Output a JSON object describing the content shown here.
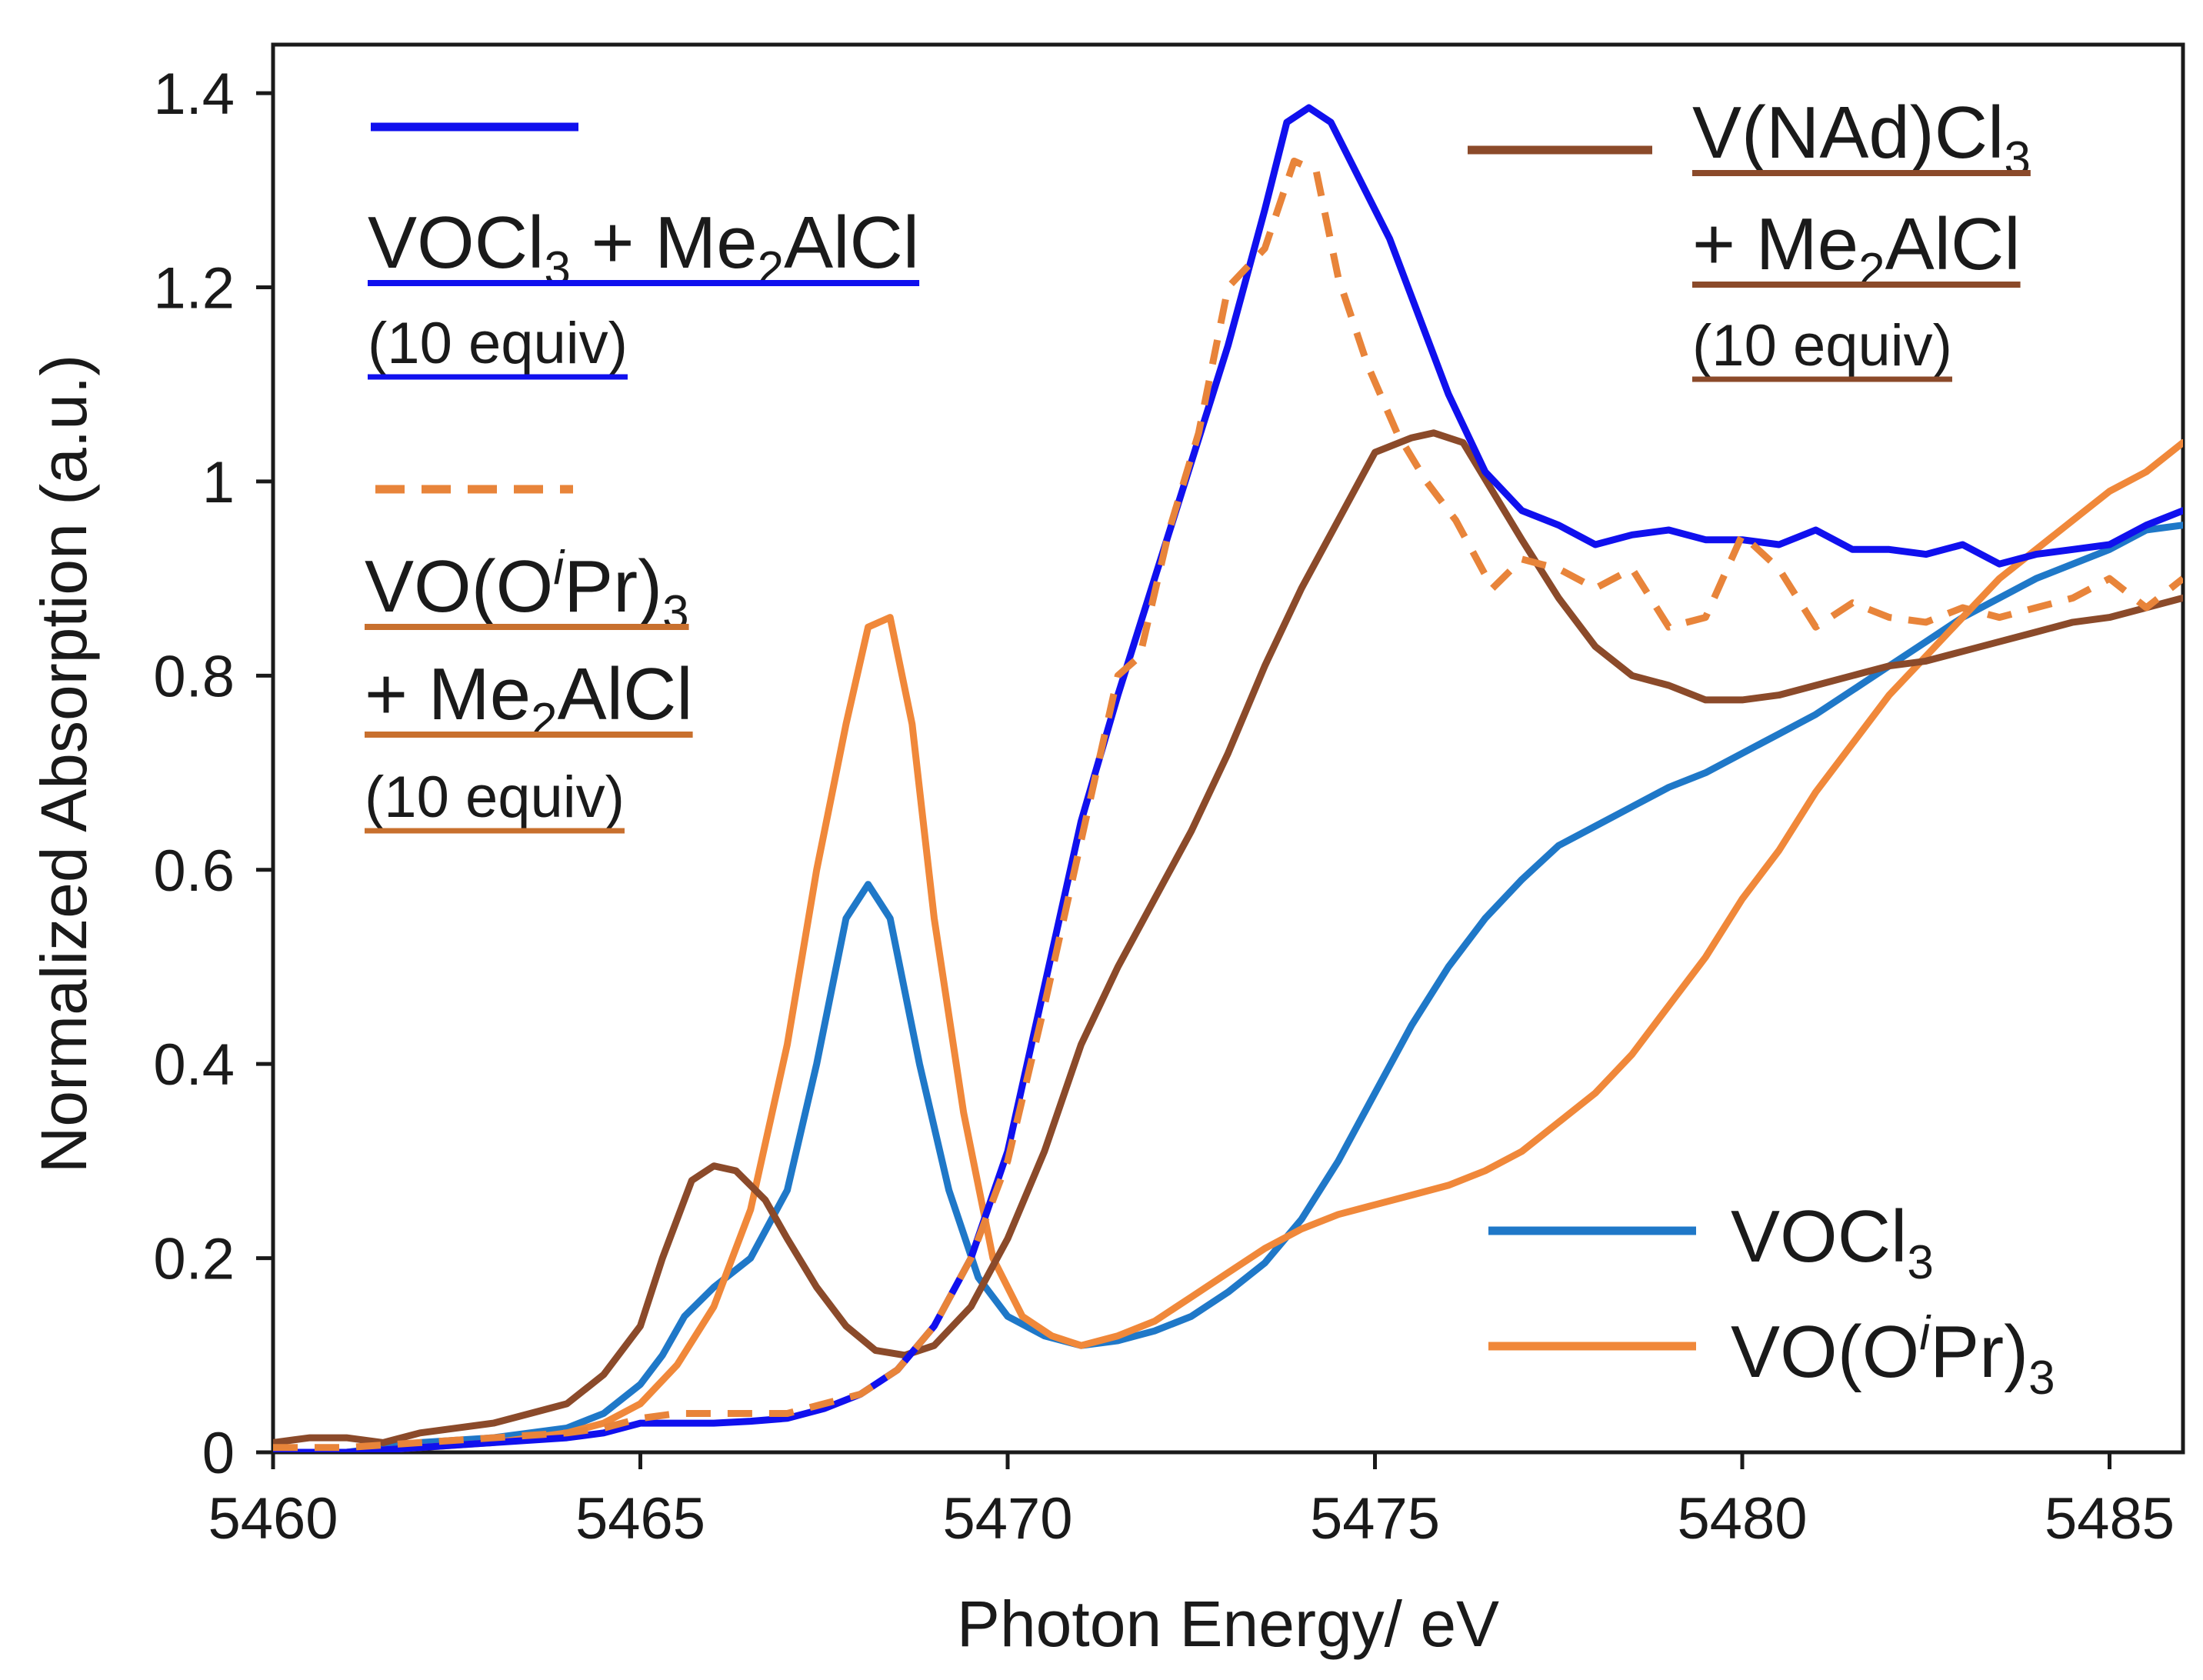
{
  "chart_data": {
    "type": "line",
    "title": "",
    "xlabel": "Photon Energy/ eV",
    "ylabel": "Normalized Absorption (a.u.)",
    "xlim": [
      5460,
      5486
    ],
    "ylim": [
      0,
      1.45
    ],
    "xticks": [
      5460,
      5465,
      5470,
      5475,
      5480,
      5485
    ],
    "xtick_labels": [
      "5460",
      "5465",
      "5470",
      "5475",
      "5480",
      "5485"
    ],
    "yticks": [
      0,
      0.2,
      0.4,
      0.6,
      0.8,
      1.0,
      1.2,
      1.4
    ],
    "ytick_labels": [
      "0",
      "0.2",
      "0.4",
      "0.6",
      "0.8",
      "1",
      "1.2",
      "1.4"
    ],
    "grid": false,
    "series": [
      {
        "id": "s-vocl3",
        "name": "VOCl3",
        "color": "#1f78c8",
        "dash": "solid",
        "points": [
          [
            5460,
            0.0
          ],
          [
            5461,
            0.0
          ],
          [
            5462,
            0.01
          ],
          [
            5463,
            0.015
          ],
          [
            5464,
            0.025
          ],
          [
            5464.5,
            0.04
          ],
          [
            5465,
            0.07
          ],
          [
            5465.3,
            0.1
          ],
          [
            5465.6,
            0.14
          ],
          [
            5466,
            0.17
          ],
          [
            5466.5,
            0.2
          ],
          [
            5467,
            0.27
          ],
          [
            5467.4,
            0.4
          ],
          [
            5467.8,
            0.55
          ],
          [
            5468.1,
            0.585
          ],
          [
            5468.4,
            0.55
          ],
          [
            5468.8,
            0.4
          ],
          [
            5469.2,
            0.27
          ],
          [
            5469.6,
            0.18
          ],
          [
            5470,
            0.14
          ],
          [
            5470.5,
            0.12
          ],
          [
            5471,
            0.11
          ],
          [
            5471.5,
            0.115
          ],
          [
            5472,
            0.125
          ],
          [
            5472.5,
            0.14
          ],
          [
            5473,
            0.165
          ],
          [
            5473.5,
            0.195
          ],
          [
            5474,
            0.24
          ],
          [
            5474.5,
            0.3
          ],
          [
            5475,
            0.37
          ],
          [
            5475.5,
            0.44
          ],
          [
            5476,
            0.5
          ],
          [
            5476.5,
            0.55
          ],
          [
            5477,
            0.59
          ],
          [
            5477.5,
            0.625
          ],
          [
            5478,
            0.645
          ],
          [
            5478.5,
            0.665
          ],
          [
            5479,
            0.685
          ],
          [
            5479.5,
            0.7
          ],
          [
            5480,
            0.72
          ],
          [
            5480.5,
            0.74
          ],
          [
            5481,
            0.76
          ],
          [
            5481.5,
            0.785
          ],
          [
            5482,
            0.81
          ],
          [
            5482.5,
            0.835
          ],
          [
            5483,
            0.86
          ],
          [
            5483.5,
            0.88
          ],
          [
            5484,
            0.9
          ],
          [
            5484.5,
            0.915
          ],
          [
            5485,
            0.93
          ],
          [
            5485.5,
            0.95
          ],
          [
            5486,
            0.955
          ]
        ]
      },
      {
        "id": "s-vooipr3",
        "name": "VO(OiPr)3",
        "color": "#f0883a",
        "dash": "solid",
        "points": [
          [
            5460,
            0.0
          ],
          [
            5461,
            0.0
          ],
          [
            5462,
            0.005
          ],
          [
            5463,
            0.01
          ],
          [
            5464,
            0.02
          ],
          [
            5464.5,
            0.03
          ],
          [
            5465,
            0.05
          ],
          [
            5465.5,
            0.09
          ],
          [
            5466,
            0.15
          ],
          [
            5466.5,
            0.25
          ],
          [
            5467,
            0.42
          ],
          [
            5467.4,
            0.6
          ],
          [
            5467.8,
            0.75
          ],
          [
            5468.1,
            0.85
          ],
          [
            5468.4,
            0.86
          ],
          [
            5468.7,
            0.75
          ],
          [
            5469,
            0.55
          ],
          [
            5469.4,
            0.35
          ],
          [
            5469.8,
            0.2
          ],
          [
            5470.2,
            0.14
          ],
          [
            5470.6,
            0.12
          ],
          [
            5471,
            0.11
          ],
          [
            5471.5,
            0.12
          ],
          [
            5472,
            0.135
          ],
          [
            5472.5,
            0.16
          ],
          [
            5473,
            0.185
          ],
          [
            5473.5,
            0.21
          ],
          [
            5474,
            0.23
          ],
          [
            5474.5,
            0.245
          ],
          [
            5475,
            0.255
          ],
          [
            5475.5,
            0.265
          ],
          [
            5476,
            0.275
          ],
          [
            5476.5,
            0.29
          ],
          [
            5477,
            0.31
          ],
          [
            5477.5,
            0.34
          ],
          [
            5478,
            0.37
          ],
          [
            5478.5,
            0.41
          ],
          [
            5479,
            0.46
          ],
          [
            5479.5,
            0.51
          ],
          [
            5480,
            0.57
          ],
          [
            5480.5,
            0.62
          ],
          [
            5481,
            0.68
          ],
          [
            5481.5,
            0.73
          ],
          [
            5482,
            0.78
          ],
          [
            5482.5,
            0.82
          ],
          [
            5483,
            0.86
          ],
          [
            5483.5,
            0.9
          ],
          [
            5484,
            0.93
          ],
          [
            5484.5,
            0.96
          ],
          [
            5485,
            0.99
          ],
          [
            5485.5,
            1.01
          ],
          [
            5486,
            1.04
          ]
        ]
      },
      {
        "id": "s-vnadcl3",
        "name": "V(NAd)Cl3 + Me2AlCl (10 equiv)",
        "color": "#8b4a2a",
        "dash": "solid",
        "points": [
          [
            5460,
            0.01
          ],
          [
            5460.5,
            0.015
          ],
          [
            5461,
            0.015
          ],
          [
            5461.5,
            0.01
          ],
          [
            5462,
            0.02
          ],
          [
            5462.5,
            0.025
          ],
          [
            5463,
            0.03
          ],
          [
            5463.5,
            0.04
          ],
          [
            5464,
            0.05
          ],
          [
            5464.5,
            0.08
          ],
          [
            5465,
            0.13
          ],
          [
            5465.3,
            0.2
          ],
          [
            5465.7,
            0.28
          ],
          [
            5466,
            0.295
          ],
          [
            5466.3,
            0.29
          ],
          [
            5466.7,
            0.26
          ],
          [
            5467,
            0.22
          ],
          [
            5467.4,
            0.17
          ],
          [
            5467.8,
            0.13
          ],
          [
            5468.2,
            0.105
          ],
          [
            5468.6,
            0.1
          ],
          [
            5469,
            0.11
          ],
          [
            5469.5,
            0.15
          ],
          [
            5470,
            0.22
          ],
          [
            5470.5,
            0.31
          ],
          [
            5471,
            0.42
          ],
          [
            5471.5,
            0.5
          ],
          [
            5472,
            0.57
          ],
          [
            5472.5,
            0.64
          ],
          [
            5473,
            0.72
          ],
          [
            5473.5,
            0.81
          ],
          [
            5474,
            0.89
          ],
          [
            5474.5,
            0.96
          ],
          [
            5475,
            1.03
          ],
          [
            5475.5,
            1.045
          ],
          [
            5475.8,
            1.05
          ],
          [
            5476.2,
            1.04
          ],
          [
            5476.6,
            0.99
          ],
          [
            5477,
            0.94
          ],
          [
            5477.5,
            0.88
          ],
          [
            5478,
            0.83
          ],
          [
            5478.5,
            0.8
          ],
          [
            5479,
            0.79
          ],
          [
            5479.5,
            0.775
          ],
          [
            5480,
            0.775
          ],
          [
            5480.5,
            0.78
          ],
          [
            5481,
            0.79
          ],
          [
            5481.5,
            0.8
          ],
          [
            5482,
            0.81
          ],
          [
            5482.5,
            0.815
          ],
          [
            5483,
            0.825
          ],
          [
            5483.5,
            0.835
          ],
          [
            5484,
            0.845
          ],
          [
            5484.5,
            0.855
          ],
          [
            5485,
            0.86
          ],
          [
            5485.5,
            0.87
          ],
          [
            5486,
            0.88
          ]
        ]
      },
      {
        "id": "s-vocl3-me2alcl",
        "name": "VOCl3 + Me2AlCl (10 equiv)",
        "color": "#1010ee",
        "dash": "solid",
        "points": [
          [
            5460,
            0.0
          ],
          [
            5461,
            0.0
          ],
          [
            5462,
            0.005
          ],
          [
            5463,
            0.01
          ],
          [
            5464,
            0.015
          ],
          [
            5464.5,
            0.02
          ],
          [
            5465,
            0.03
          ],
          [
            5465.5,
            0.03
          ],
          [
            5466,
            0.03
          ],
          [
            5466.5,
            0.032
          ],
          [
            5467,
            0.035
          ],
          [
            5467.5,
            0.045
          ],
          [
            5468,
            0.06
          ],
          [
            5468.5,
            0.085
          ],
          [
            5469,
            0.13
          ],
          [
            5469.5,
            0.2
          ],
          [
            5470,
            0.31
          ],
          [
            5470.5,
            0.48
          ],
          [
            5471,
            0.65
          ],
          [
            5471.5,
            0.78
          ],
          [
            5472,
            0.9
          ],
          [
            5472.5,
            1.02
          ],
          [
            5473,
            1.14
          ],
          [
            5473.5,
            1.28
          ],
          [
            5473.8,
            1.37
          ],
          [
            5474.1,
            1.385
          ],
          [
            5474.4,
            1.37
          ],
          [
            5474.8,
            1.31
          ],
          [
            5475.2,
            1.25
          ],
          [
            5475.6,
            1.17
          ],
          [
            5476,
            1.09
          ],
          [
            5476.5,
            1.01
          ],
          [
            5477,
            0.97
          ],
          [
            5477.5,
            0.955
          ],
          [
            5478,
            0.935
          ],
          [
            5478.5,
            0.945
          ],
          [
            5479,
            0.95
          ],
          [
            5479.5,
            0.94
          ],
          [
            5480,
            0.94
          ],
          [
            5480.5,
            0.935
          ],
          [
            5481,
            0.95
          ],
          [
            5481.5,
            0.93
          ],
          [
            5482,
            0.93
          ],
          [
            5482.5,
            0.925
          ],
          [
            5483,
            0.935
          ],
          [
            5483.5,
            0.915
          ],
          [
            5484,
            0.925
          ],
          [
            5484.5,
            0.93
          ],
          [
            5485,
            0.935
          ],
          [
            5485.5,
            0.955
          ],
          [
            5486,
            0.97
          ]
        ]
      },
      {
        "id": "s-vooipr3-me2alcl",
        "name": "VO(OiPr)3 + Me2AlCl (10 equiv)",
        "color": "#e8843a",
        "dash": "dashed",
        "points": [
          [
            5460,
            0.005
          ],
          [
            5461,
            0.005
          ],
          [
            5462,
            0.01
          ],
          [
            5463,
            0.015
          ],
          [
            5464,
            0.02
          ],
          [
            5464.5,
            0.025
          ],
          [
            5465,
            0.035
          ],
          [
            5465.5,
            0.04
          ],
          [
            5466,
            0.04
          ],
          [
            5466.5,
            0.04
          ],
          [
            5467,
            0.04
          ],
          [
            5467.5,
            0.05
          ],
          [
            5468,
            0.06
          ],
          [
            5468.5,
            0.085
          ],
          [
            5469,
            0.13
          ],
          [
            5469.5,
            0.2
          ],
          [
            5470,
            0.3
          ],
          [
            5470.5,
            0.46
          ],
          [
            5471,
            0.63
          ],
          [
            5471.5,
            0.8
          ],
          [
            5471.8,
            0.82
          ],
          [
            5472.2,
            0.95
          ],
          [
            5472.6,
            1.05
          ],
          [
            5473,
            1.2
          ],
          [
            5473.5,
            1.24
          ],
          [
            5473.9,
            1.33
          ],
          [
            5474.2,
            1.32
          ],
          [
            5474.5,
            1.21
          ],
          [
            5474.9,
            1.12
          ],
          [
            5475.3,
            1.05
          ],
          [
            5475.7,
            1.0
          ],
          [
            5476.1,
            0.96
          ],
          [
            5476.6,
            0.89
          ],
          [
            5477,
            0.92
          ],
          [
            5477.5,
            0.91
          ],
          [
            5478,
            0.89
          ],
          [
            5478.5,
            0.91
          ],
          [
            5479,
            0.85
          ],
          [
            5479.5,
            0.86
          ],
          [
            5480,
            0.945
          ],
          [
            5480.5,
            0.91
          ],
          [
            5481,
            0.85
          ],
          [
            5481.5,
            0.875
          ],
          [
            5482,
            0.86
          ],
          [
            5482.5,
            0.855
          ],
          [
            5483,
            0.87
          ],
          [
            5483.5,
            0.86
          ],
          [
            5484,
            0.87
          ],
          [
            5484.5,
            0.88
          ],
          [
            5485,
            0.9
          ],
          [
            5485.5,
            0.87
          ],
          [
            5486,
            0.9
          ]
        ]
      }
    ],
    "legend": [
      {
        "id": "leg-vocl3-me2alcl",
        "series": "s-vocl3-me2alcl",
        "placement": "top-left",
        "line_color": "#1010ee",
        "underline_color": "#1010ee",
        "dash": "solid",
        "line1": [
          "VOCl",
          "3",
          " + Me",
          "2",
          "AlCl"
        ],
        "line2": "(10 equiv)"
      },
      {
        "id": "leg-vooipr3-me2alcl",
        "series": "s-vooipr3-me2alcl",
        "placement": "middle-left",
        "line_color": "#e8843a",
        "underline_color": "#c8702e",
        "dash": "dashed",
        "line1": [
          "VO(O",
          "i",
          "Pr)",
          "3"
        ],
        "line2": [
          "+ Me",
          "2",
          "AlCl"
        ],
        "line3": "(10 equiv)"
      },
      {
        "id": "leg-vnadcl3",
        "series": "s-vnadcl3",
        "placement": "top-right",
        "line_color": "#8b4a2a",
        "underline_color": "#8b4a2a",
        "dash": "solid",
        "line1": [
          "V(NAd)Cl",
          "3"
        ],
        "line2": [
          "+ Me",
          "2",
          "AlCl"
        ],
        "line3": "(10 equiv)"
      },
      {
        "id": "leg-vocl3",
        "series": "s-vocl3",
        "placement": "bottom-right",
        "line_color": "#1f78c8",
        "dash": "solid",
        "line1": [
          "VOCl",
          "3"
        ]
      },
      {
        "id": "leg-vooipr3",
        "series": "s-vooipr3",
        "placement": "bottom-right",
        "line_color": "#f0883a",
        "dash": "solid",
        "line1": [
          "VO(O",
          "i",
          "Pr)",
          "3"
        ]
      }
    ]
  }
}
